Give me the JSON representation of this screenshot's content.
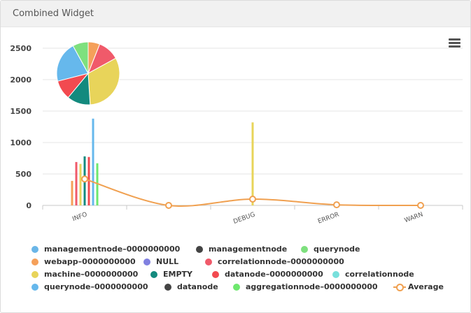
{
  "widget": {
    "title": "Combined Widget",
    "menu_icon": "hamburger-menu-icon"
  },
  "chart_data": {
    "type": "bar",
    "categories": [
      "INFO",
      "",
      "DEBUG",
      "ERROR",
      "WARN"
    ],
    "ylim": [
      0,
      2500
    ],
    "yticks": [
      0,
      500,
      1000,
      1500,
      2000,
      2500
    ],
    "series": [
      {
        "name": "managementnode–0000000000",
        "color": "#6ab6e8",
        "values": [
          0,
          0,
          0,
          0,
          0
        ]
      },
      {
        "name": "managementnode",
        "color": "#444444",
        "values": [
          0,
          0,
          0,
          0,
          0
        ]
      },
      {
        "name": "querynode",
        "color": "#7ee07e",
        "values": [
          0,
          0,
          0,
          0,
          0
        ]
      },
      {
        "name": "webapp–0000000000",
        "color": "#f5a05a",
        "values": [
          390,
          0,
          0,
          60,
          0
        ]
      },
      {
        "name": "NULL",
        "color": "#8080e0",
        "values": [
          0,
          0,
          0,
          0,
          0
        ]
      },
      {
        "name": "correlationnode–0000000000",
        "color": "#f05a6a",
        "values": [
          690,
          0,
          0,
          0,
          0
        ]
      },
      {
        "name": "machine–0000000000",
        "color": "#e8d45a",
        "values": [
          660,
          0,
          1320,
          0,
          0
        ]
      },
      {
        "name": "EMPTY",
        "color": "#138a7e",
        "values": [
          780,
          0,
          0,
          0,
          0
        ]
      },
      {
        "name": "datanode–0000000000",
        "color": "#f24a50",
        "values": [
          770,
          0,
          0,
          0,
          0
        ]
      },
      {
        "name": "correlationnode",
        "color": "#78e0dc",
        "values": [
          0,
          0,
          0,
          0,
          0
        ]
      },
      {
        "name": "querynode–0000000000",
        "color": "#66b8ec",
        "values": [
          1380,
          0,
          0,
          0,
          0
        ]
      },
      {
        "name": "datanode",
        "color": "#444444",
        "values": [
          0,
          0,
          0,
          0,
          0
        ]
      },
      {
        "name": "aggregationnode–0000000000",
        "color": "#6ee86e",
        "values": [
          670,
          0,
          0,
          0,
          0
        ]
      }
    ],
    "average": {
      "name": "Average",
      "color": "#f0a050",
      "values": [
        420,
        0,
        100,
        10,
        0
      ]
    },
    "pie": {
      "slices": [
        {
          "color": "#f5a05a",
          "value": 6
        },
        {
          "color": "#f05a6a",
          "value": 11
        },
        {
          "color": "#e8d45a",
          "value": 32
        },
        {
          "color": "#138a7e",
          "value": 12
        },
        {
          "color": "#f24a50",
          "value": 10
        },
        {
          "color": "#66b8ec",
          "value": 21
        },
        {
          "color": "#7ee07e",
          "value": 8
        }
      ]
    }
  },
  "legend": {
    "rows": [
      [
        {
          "label": "managementnode–0000000000",
          "color": "#6ab6e8"
        },
        {
          "label": "managementnode",
          "color": "#444444"
        },
        {
          "label": "querynode",
          "color": "#7ee07e"
        }
      ],
      [
        {
          "label": "webapp–0000000000",
          "color": "#f5a05a"
        },
        {
          "label": "NULL",
          "color": "#8080e0"
        },
        {
          "label": "correlationnode–0000000000",
          "color": "#f05a6a"
        }
      ],
      [
        {
          "label": "machine–0000000000",
          "color": "#e8d45a"
        },
        {
          "label": "EMPTY",
          "color": "#138a7e"
        },
        {
          "label": "datanode–0000000000",
          "color": "#f24a50"
        },
        {
          "label": "correlationnode",
          "color": "#78e0dc"
        }
      ],
      [
        {
          "label": "querynode–0000000000",
          "color": "#66b8ec"
        },
        {
          "label": "datanode",
          "color": "#444444"
        },
        {
          "label": "aggregationnode–0000000000",
          "color": "#6ee86e"
        },
        {
          "label": "Average",
          "color": "#f0a050",
          "kind": "line"
        }
      ]
    ]
  }
}
